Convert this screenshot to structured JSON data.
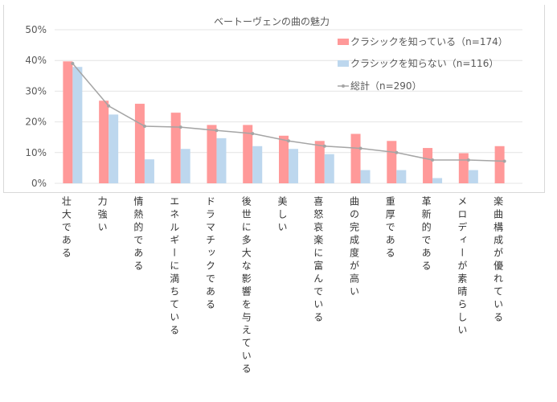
{
  "chart_data": {
    "type": "bar",
    "title": "ベートーヴェンの曲の魅力",
    "categories": [
      "壮大である",
      "力強い",
      "情熱的である",
      "エネルギーに満ちている",
      "ドラマチックである",
      "後世に多大な影響を与えている",
      "美しい",
      "喜怒哀楽に富んでいる",
      "曲の完成度が高い",
      "重厚である",
      "革新的である",
      "メロディーが素晴らしい",
      "楽曲構成が優れている"
    ],
    "series": [
      {
        "name": "クラシックを知っている（n=174）",
        "kind": "bar",
        "color": "#ff9999",
        "values": [
          39.7,
          26.9,
          25.9,
          23.0,
          19.0,
          19.0,
          15.5,
          13.8,
          16.1,
          13.8,
          11.5,
          9.8,
          12.1
        ]
      },
      {
        "name": "クラシックを知らない（n=116）",
        "kind": "bar",
        "color": "#bdd7ee",
        "values": [
          37.9,
          22.4,
          7.8,
          11.2,
          14.7,
          12.1,
          11.2,
          9.5,
          4.3,
          4.3,
          1.7,
          4.3,
          0
        ]
      },
      {
        "name": "総計（n=290）",
        "kind": "line",
        "color": "#a5a5a5",
        "values": [
          39.0,
          25.2,
          18.6,
          18.3,
          17.2,
          16.2,
          13.8,
          12.1,
          11.4,
          10.0,
          7.6,
          7.6,
          7.2
        ]
      }
    ],
    "yticks": [
      "0%",
      "10%",
      "20%",
      "30%",
      "40%",
      "50%"
    ],
    "ylim": [
      0,
      50
    ],
    "grid": true,
    "legend": "top-right"
  }
}
